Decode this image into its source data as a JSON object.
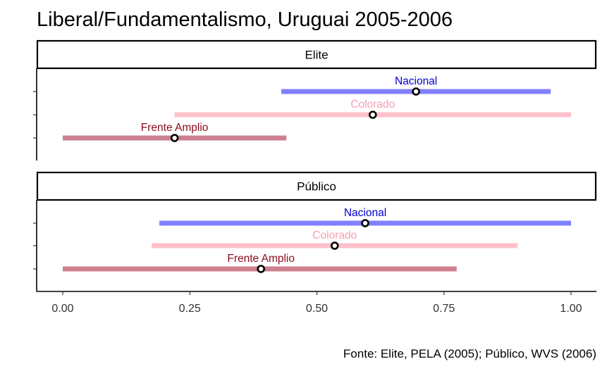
{
  "chart_data": {
    "type": "range",
    "title": "Liberal/Fundamentalismo, Uruguai 2005-2006",
    "caption": "Fonte: Elite, PELA (2005); Público, WVS (2006)",
    "xlim": [
      0,
      1
    ],
    "x_ticks": [
      "0.00",
      "0.25",
      "0.50",
      "0.75",
      "1.00"
    ],
    "x_tick_values": [
      0,
      0.25,
      0.5,
      0.75,
      1.0
    ],
    "grid": false,
    "colors": {
      "Nacional": {
        "bar": "#8080ff",
        "text": "#0000cc"
      },
      "Colorado": {
        "bar": "#ffc0cb",
        "text": "#f4a0b0"
      },
      "Frente Amplio": {
        "bar": "#cd8090",
        "text": "#8b0a1a"
      }
    },
    "panels": [
      {
        "name": "Elite",
        "series": [
          {
            "name": "Nacional",
            "low": 0.43,
            "high": 0.96,
            "mean": 0.695
          },
          {
            "name": "Colorado",
            "low": 0.22,
            "high": 1.0,
            "mean": 0.61
          },
          {
            "name": "Frente Amplio",
            "low": 0.0,
            "high": 0.44,
            "mean": 0.22
          }
        ]
      },
      {
        "name": "Público",
        "series": [
          {
            "name": "Nacional",
            "low": 0.19,
            "high": 1.0,
            "mean": 0.595
          },
          {
            "name": "Colorado",
            "low": 0.175,
            "high": 0.895,
            "mean": 0.535
          },
          {
            "name": "Frente Amplio",
            "low": 0.0,
            "high": 0.775,
            "mean": 0.39
          }
        ]
      }
    ]
  }
}
